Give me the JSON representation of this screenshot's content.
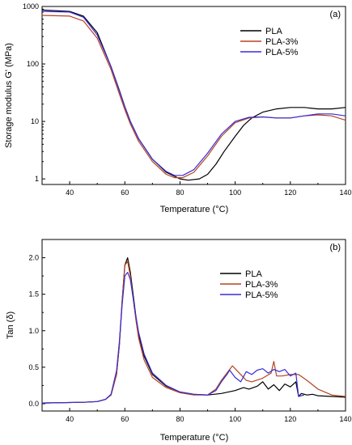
{
  "chart_data": [
    {
      "type": "line",
      "panel_label": "(a)",
      "xlabel": "Temperature (°C)",
      "ylabel": "Storage modulus G' (MPa)",
      "xlim": [
        30,
        140
      ],
      "ylim": [
        0.8,
        1000
      ],
      "yscale": "log",
      "xticks": [
        40,
        60,
        80,
        100,
        120,
        140
      ],
      "yticks": [
        1,
        10,
        100,
        1000
      ],
      "ytick_labels": [
        "1",
        "10",
        "100",
        "1000"
      ],
      "legend_position": "top-right",
      "series": [
        {
          "name": "PLA",
          "color": "#000000",
          "x": [
            30,
            40,
            45,
            50,
            55,
            58,
            60,
            62,
            65,
            70,
            75,
            80,
            83,
            87,
            90,
            93,
            96,
            100,
            103,
            106,
            110,
            115,
            120,
            125,
            130,
            135,
            140
          ],
          "y": [
            870,
            820,
            680,
            350,
            90,
            35,
            18,
            10,
            5,
            2.2,
            1.3,
            1.0,
            0.95,
            1.0,
            1.2,
            1.8,
            3.0,
            5.5,
            8.5,
            11.5,
            14.5,
            16.5,
            17.5,
            17.5,
            16.5,
            16.5,
            17.5
          ]
        },
        {
          "name": "PLA-3%",
          "color": "#b5441f",
          "x": [
            30,
            40,
            45,
            50,
            55,
            58,
            60,
            62,
            65,
            70,
            75,
            78,
            81,
            85,
            90,
            95,
            100,
            105,
            110,
            115,
            120,
            125,
            130,
            135,
            140
          ],
          "y": [
            700,
            680,
            560,
            280,
            80,
            30,
            16,
            9,
            4.5,
            2.0,
            1.2,
            1.05,
            1.05,
            1.3,
            2.5,
            5.5,
            9.5,
            11.5,
            12.0,
            11.5,
            11.5,
            12.5,
            13.0,
            12.5,
            10.5
          ]
        },
        {
          "name": "PLA-5%",
          "color": "#3b2bd6",
          "x": [
            30,
            40,
            45,
            50,
            55,
            58,
            60,
            62,
            65,
            70,
            75,
            78,
            81,
            85,
            90,
            95,
            100,
            105,
            110,
            115,
            120,
            125,
            130,
            135,
            140
          ],
          "y": [
            820,
            800,
            650,
            320,
            90,
            34,
            18,
            10,
            5,
            2.2,
            1.35,
            1.15,
            1.15,
            1.45,
            2.8,
            6.0,
            10.0,
            11.8,
            12.0,
            11.5,
            11.5,
            12.5,
            13.5,
            13.5,
            12.5
          ]
        }
      ]
    },
    {
      "type": "line",
      "panel_label": "(b)",
      "xlabel": "Temperature (°C)",
      "ylabel": "Tan (δ)",
      "xlim": [
        30,
        140
      ],
      "ylim": [
        -0.1,
        2.25
      ],
      "yscale": "linear",
      "xticks": [
        40,
        60,
        80,
        100,
        120,
        140
      ],
      "yticks": [
        0.0,
        0.5,
        1.0,
        1.5,
        2.0
      ],
      "ytick_labels": [
        "0.0",
        "0.5",
        "1.0",
        "1.5",
        "2.0"
      ],
      "legend_position": "center-right",
      "series": [
        {
          "name": "PLA",
          "color": "#000000",
          "x": [
            30,
            45,
            50,
            53,
            55,
            57,
            58,
            59,
            60,
            61,
            62,
            63,
            64,
            65,
            67,
            70,
            75,
            80,
            85,
            90,
            95,
            100,
            103,
            105,
            108,
            110,
            112,
            114,
            116,
            118,
            120,
            122,
            123,
            124,
            126,
            128,
            130,
            135,
            140
          ],
          "y": [
            0.01,
            0.02,
            0.03,
            0.06,
            0.12,
            0.4,
            0.8,
            1.4,
            1.9,
            2.0,
            1.8,
            1.5,
            1.2,
            0.95,
            0.65,
            0.4,
            0.24,
            0.16,
            0.13,
            0.12,
            0.14,
            0.18,
            0.22,
            0.2,
            0.24,
            0.3,
            0.2,
            0.26,
            0.18,
            0.27,
            0.23,
            0.3,
            0.1,
            0.14,
            0.12,
            0.13,
            0.11,
            0.1,
            0.09
          ]
        },
        {
          "name": "PLA-3%",
          "color": "#b5441f",
          "x": [
            30,
            45,
            50,
            53,
            55,
            57,
            58,
            59,
            60,
            61,
            62,
            63,
            64,
            65,
            67,
            70,
            75,
            80,
            85,
            90,
            93,
            95,
            97,
            99,
            100,
            102,
            104,
            106,
            110,
            113,
            114,
            115,
            117,
            120,
            123,
            126,
            130,
            135,
            140
          ],
          "y": [
            0.01,
            0.02,
            0.03,
            0.06,
            0.12,
            0.4,
            0.8,
            1.4,
            1.9,
            1.95,
            1.75,
            1.45,
            1.15,
            0.9,
            0.6,
            0.36,
            0.22,
            0.15,
            0.12,
            0.12,
            0.2,
            0.32,
            0.42,
            0.52,
            0.48,
            0.4,
            0.32,
            0.3,
            0.35,
            0.42,
            0.58,
            0.38,
            0.38,
            0.4,
            0.4,
            0.32,
            0.2,
            0.12,
            0.1
          ]
        },
        {
          "name": "PLA-5%",
          "color": "#3b2bd6",
          "x": [
            30,
            45,
            50,
            53,
            55,
            57,
            58,
            59,
            60,
            61,
            62,
            63,
            64,
            65,
            67,
            70,
            75,
            80,
            85,
            90,
            93,
            95,
            97,
            98,
            100,
            102,
            104,
            106,
            108,
            110,
            112,
            114,
            116,
            118,
            120,
            122,
            123,
            125
          ],
          "y": [
            0.01,
            0.02,
            0.03,
            0.06,
            0.13,
            0.45,
            0.85,
            1.35,
            1.75,
            1.8,
            1.7,
            1.45,
            1.2,
            0.98,
            0.68,
            0.42,
            0.25,
            0.16,
            0.13,
            0.12,
            0.18,
            0.3,
            0.4,
            0.46,
            0.36,
            0.3,
            0.44,
            0.4,
            0.46,
            0.48,
            0.42,
            0.47,
            0.44,
            0.47,
            0.38,
            0.42,
            0.1,
            0.12
          ]
        }
      ]
    }
  ]
}
